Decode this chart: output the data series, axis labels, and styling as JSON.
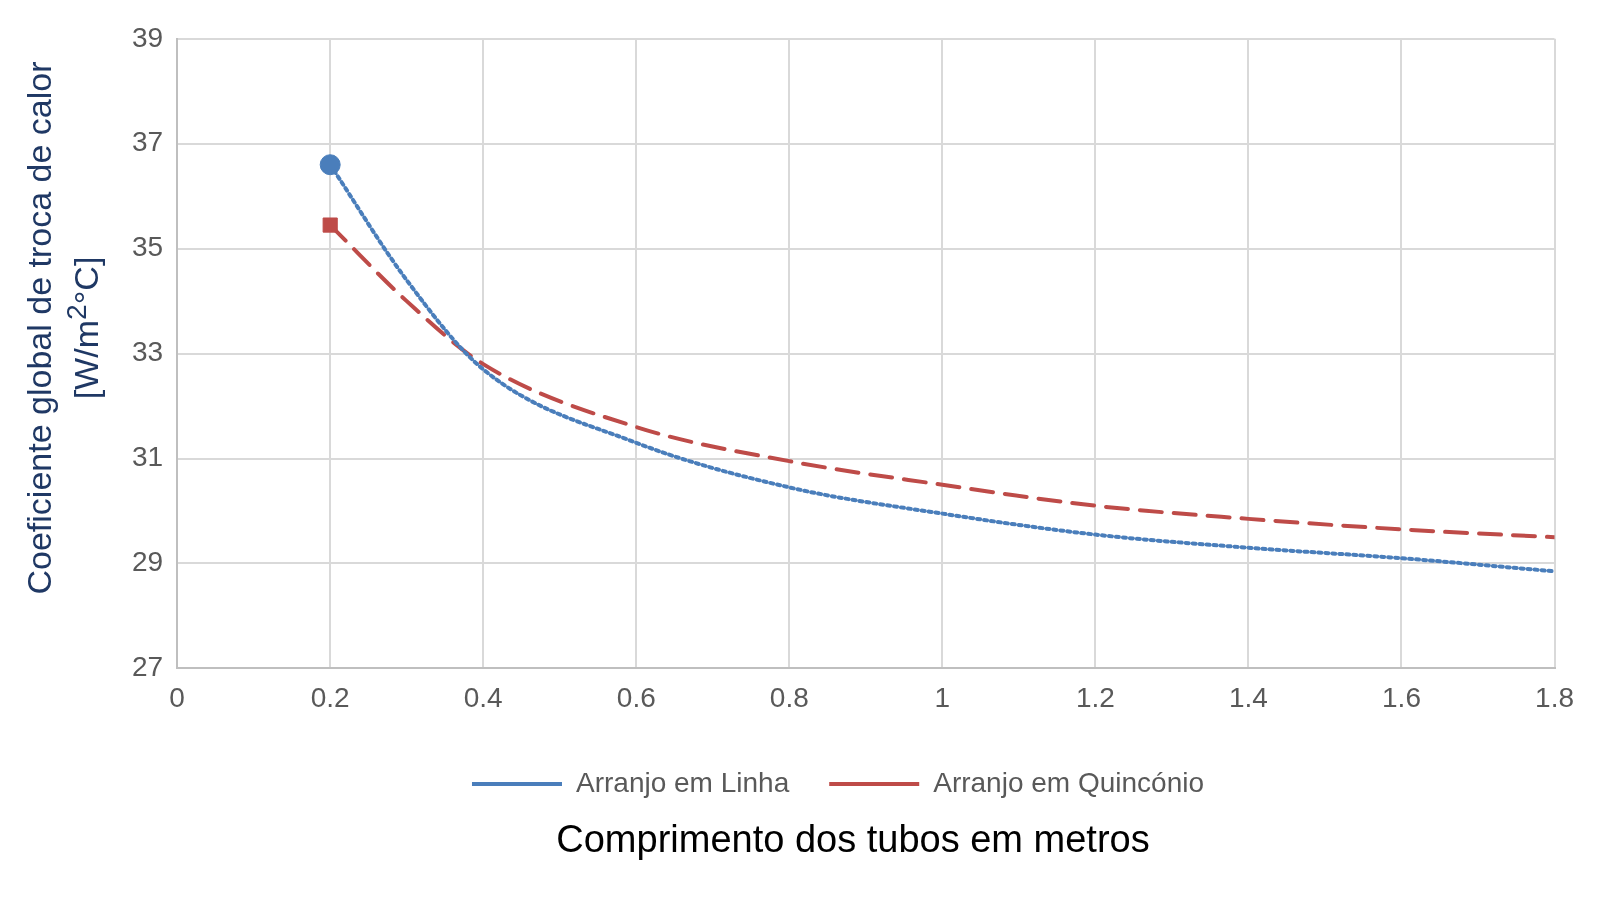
{
  "chart_data": {
    "type": "line",
    "xlabel": "Comprimento dos tubos em metros",
    "ylabel": "Coeficiente global de troca de calor  [W/m$^{2}$°C]",
    "xlim": [
      0,
      1.8
    ],
    "xticks": [
      0,
      0.2,
      0.4,
      0.6,
      0.8,
      1,
      1.2,
      1.4,
      1.6,
      1.8
    ],
    "ylim": [
      27,
      39
    ],
    "yticks": [
      27,
      29,
      31,
      33,
      35,
      37,
      39
    ],
    "grid": true,
    "legend": "bottom",
    "series": [
      {
        "type": "scatter",
        "color": "#4a7ebb",
        "marker": "circle",
        "x": [
          0.2
        ],
        "values": [
          36.6
        ]
      },
      {
        "type": "scatter",
        "color": "#be4b48",
        "marker": "square",
        "x": [
          0.2
        ],
        "values": [
          35.45
        ]
      },
      {
        "name": "Arranjo em Linha",
        "color": "#4a7ebb",
        "line_style": "dotted",
        "marker": "none",
        "x": [
          0.2,
          0.3,
          0.4,
          0.6,
          0.8,
          1,
          1.2,
          1.4,
          1.6,
          1.8
        ],
        "values": [
          36.6,
          34.4,
          32.7,
          31.3,
          30.45,
          29.95,
          29.55,
          29.3,
          29.1,
          28.85
        ]
      },
      {
        "name": "Arranjo em Quincónio",
        "color": "#be4b48",
        "line_style": "dashed",
        "marker": "none",
        "x": [
          0.2,
          0.3,
          0.4,
          0.6,
          0.8,
          1,
          1.2,
          1.4,
          1.6,
          1.8
        ],
        "values": [
          35.45,
          34.0,
          32.8,
          31.6,
          30.95,
          30.5,
          30.1,
          29.85,
          29.65,
          29.5
        ]
      }
    ]
  }
}
